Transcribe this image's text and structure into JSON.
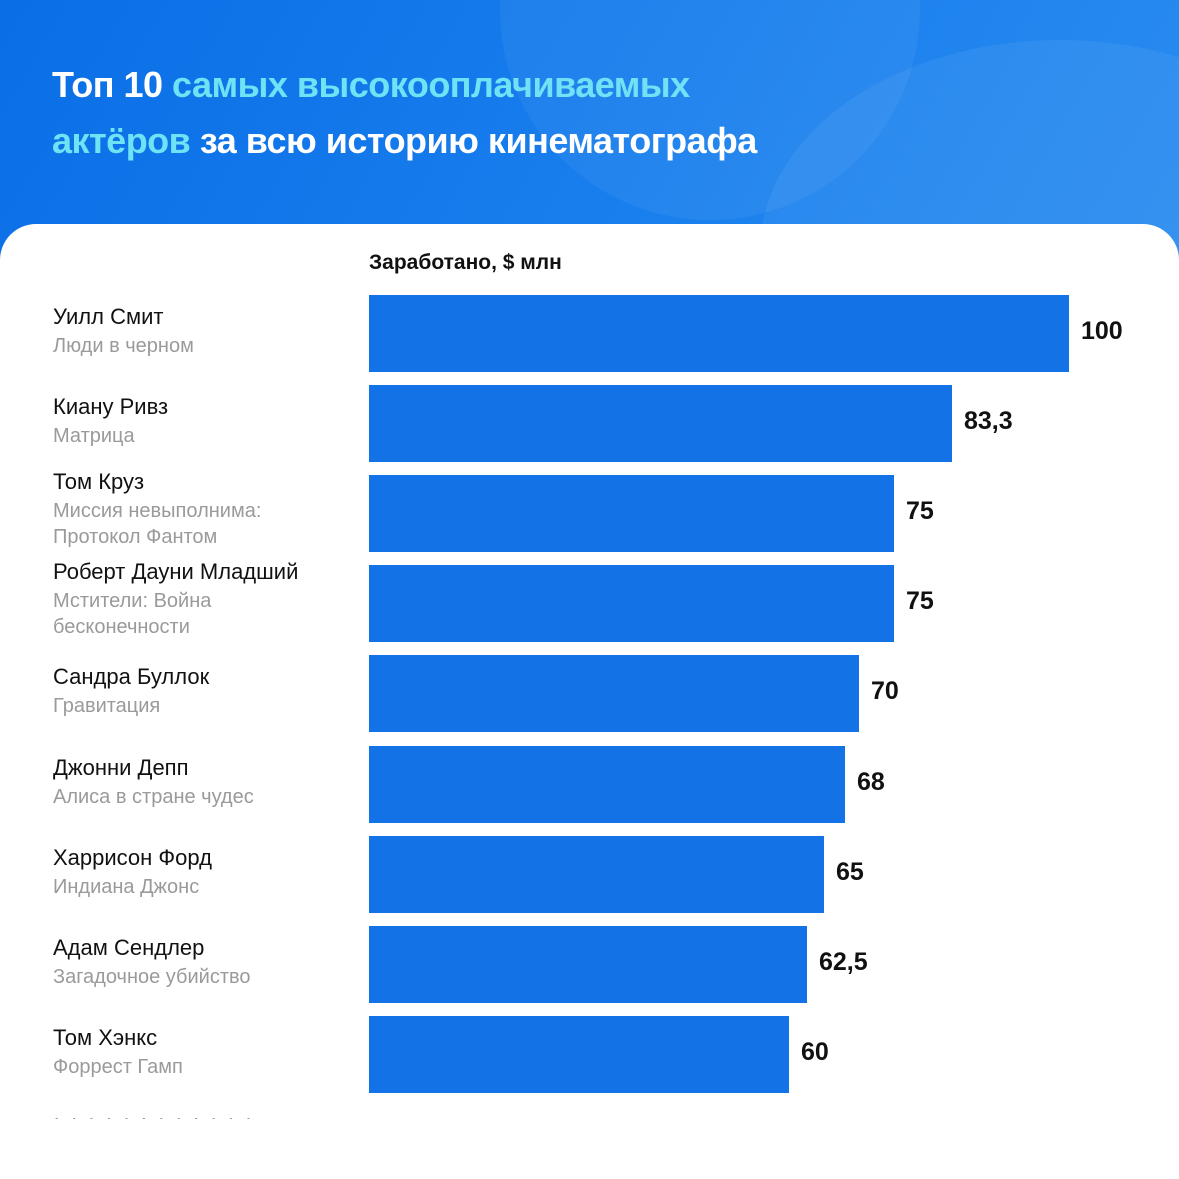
{
  "title": {
    "line1": [
      {
        "text": "Топ 10 ",
        "color": "white"
      },
      {
        "text": "самых высокооплачиваемых",
        "color": "cyan"
      }
    ],
    "line2": [
      {
        "text": "актёров",
        "color": "cyan"
      },
      {
        "text": " за всю историю кинематографа",
        "color": "white"
      }
    ]
  },
  "colors": {
    "background": "#1378e8",
    "bar": "#1272e6",
    "accent_text": "#6fe3f5",
    "card": "#ffffff"
  },
  "chart_data": {
    "type": "bar",
    "orientation": "horizontal",
    "title": "Топ 10 самых высокооплачиваемых актёров за всю историю кинематографа",
    "xlabel": "Заработано, $ млн",
    "ylabel": "",
    "xlim": [
      0,
      100
    ],
    "grid": false,
    "legend": "none",
    "categories": [
      {
        "name": "Уилл Смит",
        "movie": "Люди в черном"
      },
      {
        "name": "Киану Ривз",
        "movie": "Матрица"
      },
      {
        "name": "Том Круз",
        "movie": "Миссия невыполнима: Протокол Фантом"
      },
      {
        "name": "Роберт Дауни Младший",
        "movie": "Мстители: Война бесконечности"
      },
      {
        "name": "Сандра Буллок",
        "movie": "Гравитация"
      },
      {
        "name": "Джонни Депп",
        "movie": "Алиса в стране чудес"
      },
      {
        "name": "Харрисон Форд",
        "movie": "Индиана Джонс"
      },
      {
        "name": "Адам Сендлер",
        "movie": "Загадочное убийство"
      },
      {
        "name": "Том Хэнкс",
        "movie": "Форрест Гамп"
      }
    ],
    "values": [
      100,
      83.3,
      75,
      75,
      70,
      68,
      65,
      62.5,
      60
    ],
    "value_labels": [
      "100",
      "83,3",
      "75",
      "75",
      "70",
      "68",
      "65",
      "62,5",
      "60"
    ]
  }
}
